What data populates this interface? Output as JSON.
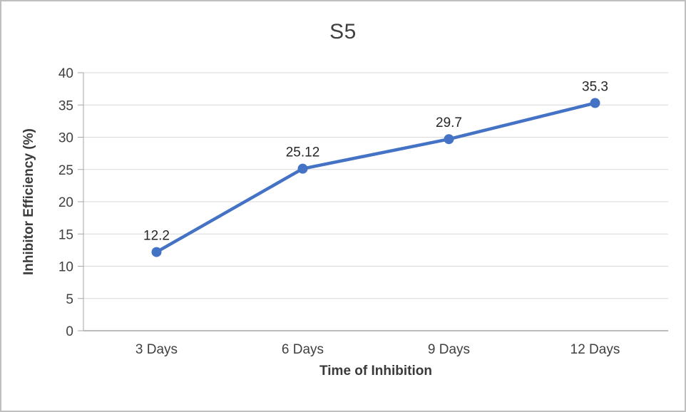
{
  "chart_data": {
    "type": "line",
    "title": "S5",
    "categories": [
      "3 Days",
      "6 Days",
      "9 Days",
      "12 Days"
    ],
    "series": [
      {
        "name": "S5",
        "values": [
          12.2,
          25.12,
          29.7,
          35.3
        ]
      }
    ],
    "data_labels": [
      "12.2",
      "25.12",
      "29.7",
      "35.3"
    ],
    "xlabel": "Time of Inhibition",
    "ylabel": "Inhibitor Efficiency (%)",
    "ylim": [
      0,
      40
    ],
    "ytick_step": 5,
    "grid": "horizontal",
    "legend": "none",
    "line_color": "#4472c4",
    "grid_color": "#d9d9d9",
    "axis_color": "#a6a6a6",
    "tick_text_color": "#404040",
    "label_text_color": "#262626"
  }
}
